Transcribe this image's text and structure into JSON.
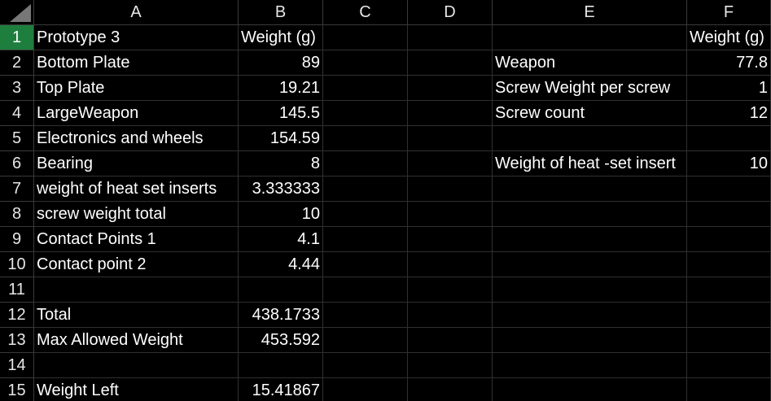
{
  "columns": [
    "A",
    "B",
    "C",
    "D",
    "E",
    "F"
  ],
  "rows": [
    "1",
    "2",
    "3",
    "4",
    "5",
    "6",
    "7",
    "8",
    "9",
    "10",
    "11",
    "12",
    "13",
    "14",
    "15"
  ],
  "cells": {
    "A1": "Prototype 3",
    "B1": "Weight (g)",
    "F1": "Weight (g)",
    "A2": "Bottom Plate",
    "B2": "89",
    "E2": "Weapon",
    "F2": "77.8",
    "A3": "Top Plate",
    "B3": "19.21",
    "E3": "Screw Weight per screw",
    "F3": "1",
    "A4": "LargeWeapon",
    "B4": "145.5",
    "E4": "Screw count",
    "F4": "12",
    "A5": "Electronics and wheels",
    "B5": "154.59",
    "A6": "Bearing",
    "B6": "8",
    "E6": "Weight of heat -set insert",
    "F6": "10",
    "A7": "weight of heat set inserts",
    "B7": "3.333333",
    "A8": "screw weight total",
    "B8": "10",
    "A9": "Contact Points 1",
    "B9": "4.1",
    "A10": "Contact point 2",
    "B10": "4.44",
    "A12": "Total",
    "B12": "438.1733",
    "A13": "Max Allowed Weight",
    "B13": "453.592",
    "A15": "Weight Left",
    "B15": "15.41867"
  },
  "active_row": "1",
  "colors": {
    "background": "#000000",
    "active_row_header": "#1e7e3e",
    "gridline": "#303030"
  },
  "icons": {
    "select_all": "select-all-triangle-icon"
  }
}
